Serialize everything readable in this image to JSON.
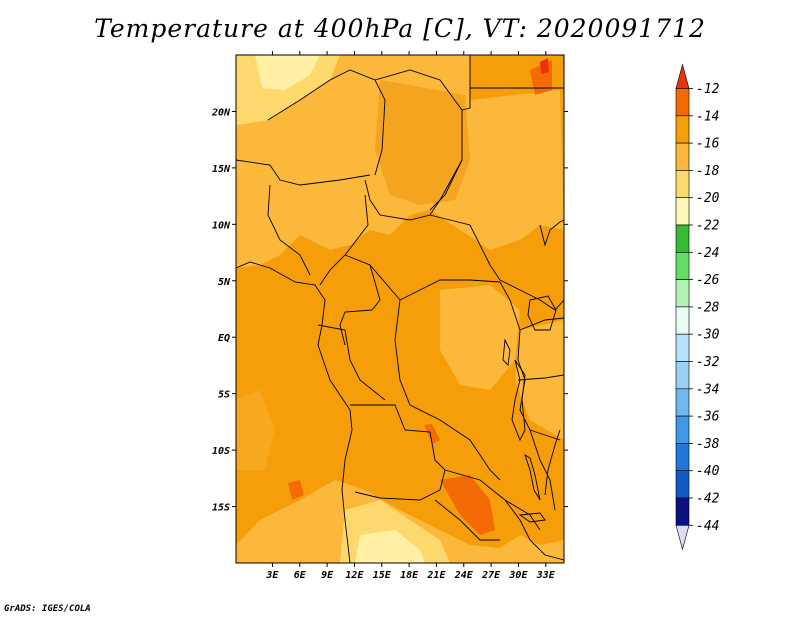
{
  "title": "Temperature at 400hPa [C], VT: 2020091712",
  "credit": "GrADS: IGES/COLA",
  "map": {
    "lon_range": [
      -1,
      35
    ],
    "lat_range": [
      -20,
      25
    ],
    "lon_ticks": [
      {
        "value": 3,
        "label": "3E"
      },
      {
        "value": 6,
        "label": "6E"
      },
      {
        "value": 9,
        "label": "9E"
      },
      {
        "value": 12,
        "label": "12E"
      },
      {
        "value": 15,
        "label": "15E"
      },
      {
        "value": 18,
        "label": "18E"
      },
      {
        "value": 21,
        "label": "21E"
      },
      {
        "value": 24,
        "label": "24E"
      },
      {
        "value": 27,
        "label": "27E"
      },
      {
        "value": 30,
        "label": "30E"
      },
      {
        "value": 33,
        "label": "33E"
      }
    ],
    "lat_ticks": [
      {
        "value": 20,
        "label": "20N"
      },
      {
        "value": 15,
        "label": "15N"
      },
      {
        "value": 10,
        "label": "10N"
      },
      {
        "value": 5,
        "label": "5N"
      },
      {
        "value": 0,
        "label": "EQ"
      },
      {
        "value": -5,
        "label": "5S"
      },
      {
        "value": -10,
        "label": "10S"
      },
      {
        "value": -15,
        "label": "15S"
      }
    ]
  },
  "colorbar": {
    "labels": [
      "-12",
      "-14",
      "-16",
      "-18",
      "-20",
      "-22",
      "-24",
      "-26",
      "-28",
      "-30",
      "-32",
      "-34",
      "-36",
      "-38",
      "-40",
      "-42",
      "-44"
    ],
    "colors": [
      "#e8340a",
      "#f46a04",
      "#f59e0a",
      "#fbb83a",
      "#fdd96d",
      "#fff7b8",
      "#33bb33",
      "#65dd65",
      "#b3f0b3",
      "#e8fcf4",
      "#b7e2fb",
      "#9bd0f6",
      "#70b8f0",
      "#4298e8",
      "#2178dc",
      "#0f5ac4",
      "#0c1280"
    ],
    "top_arrow_color": "#e8340a",
    "bottom_arrow_color": "#dcdcf5"
  }
}
